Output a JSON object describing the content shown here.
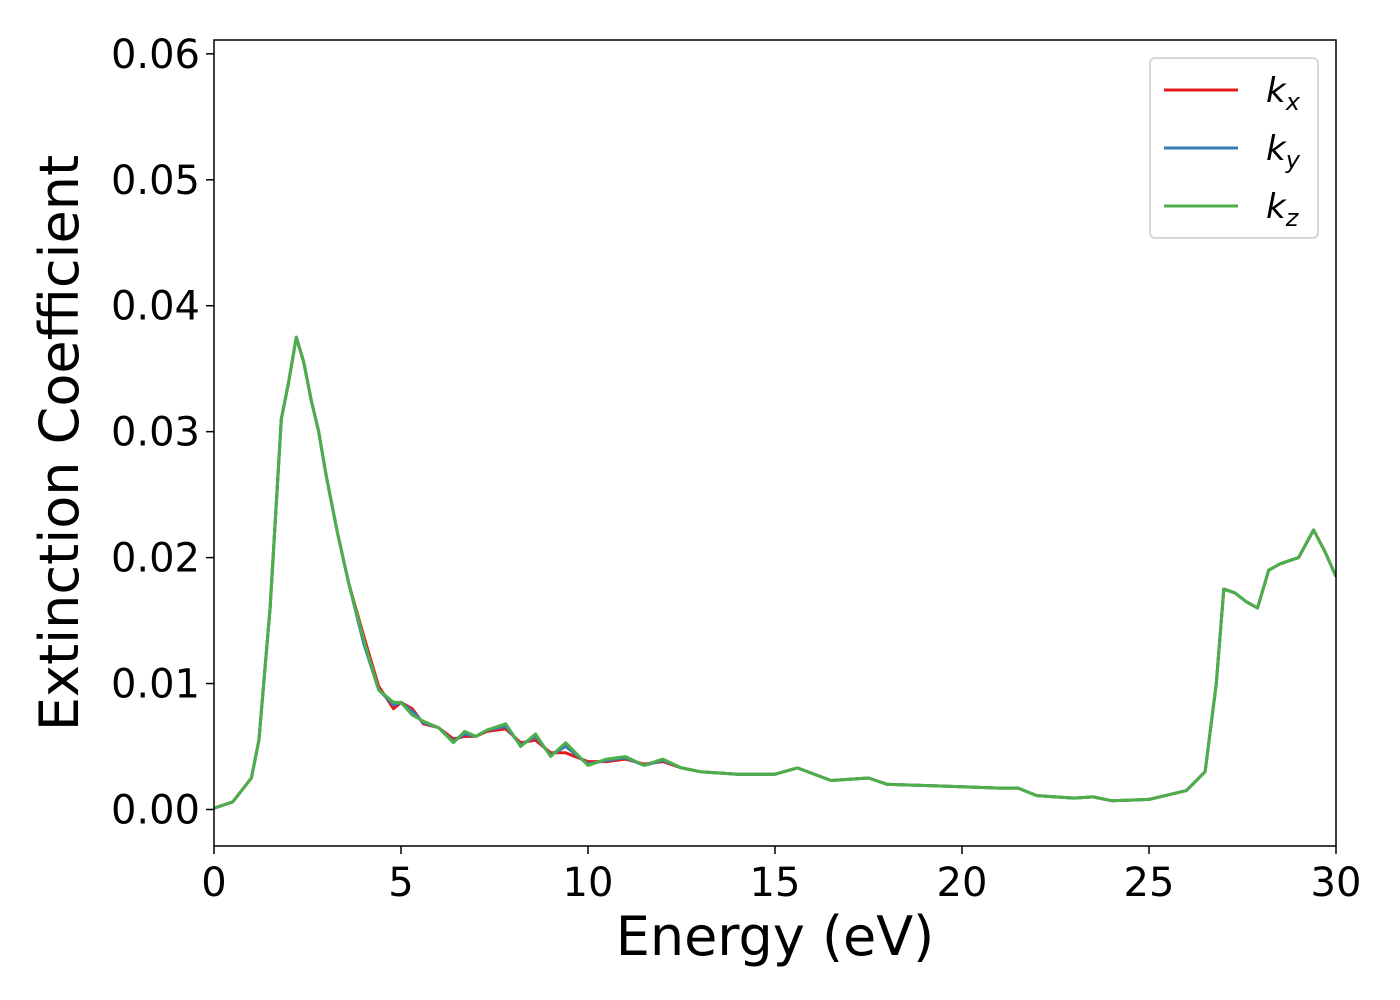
{
  "chart_data": {
    "type": "line",
    "xlabel": "Energy (eV)",
    "ylabel": "Extinction Coefficient",
    "x": [
      0,
      0.5,
      1,
      1.2,
      1.5,
      1.8,
      2.0,
      2.2,
      2.4,
      2.6,
      2.8,
      3.0,
      3.3,
      3.6,
      4.0,
      4.4,
      4.8,
      5.0,
      5.3,
      5.6,
      6.0,
      6.4,
      6.7,
      7.0,
      7.3,
      7.8,
      8.2,
      8.6,
      9.0,
      9.4,
      10,
      10.5,
      11,
      11.5,
      12,
      12.5,
      13,
      14,
      15,
      15.6,
      16.5,
      17.5,
      18,
      19,
      20,
      21,
      21.5,
      22,
      23,
      23.5,
      24,
      25,
      26,
      26.5,
      26.8,
      27.0,
      27.3,
      27.6,
      27.9,
      28.2,
      28.5,
      28.8,
      29.0,
      29.4,
      29.7,
      30
    ],
    "series": [
      {
        "name": "kx",
        "color": "#e41a1c",
        "values": [
          0.0001,
          0.0006,
          0.0025,
          0.0055,
          0.016,
          0.031,
          0.034,
          0.0375,
          0.0355,
          0.0325,
          0.03,
          0.0265,
          0.022,
          0.018,
          0.0138,
          0.0098,
          0.008,
          0.0085,
          0.008,
          0.0068,
          0.0065,
          0.0056,
          0.0058,
          0.0058,
          0.0062,
          0.0064,
          0.0053,
          0.0055,
          0.0045,
          0.0045,
          0.0038,
          0.0038,
          0.004,
          0.0036,
          0.0038,
          0.0033,
          0.003,
          0.0028,
          0.0028,
          0.0033,
          0.0023,
          0.0025,
          0.002,
          0.0019,
          0.0018,
          0.0017,
          0.0017,
          0.0011,
          0.0009,
          0.001,
          0.0007,
          0.0008,
          0.0015,
          0.003,
          0.01,
          0.0175,
          0.0172,
          0.0165,
          0.016,
          0.019,
          0.0195,
          0.0198,
          0.02,
          0.0222,
          0.0205,
          0.0185
        ]
      },
      {
        "name": "ky",
        "color": "#377eb8",
        "values": [
          0.0001,
          0.0006,
          0.0025,
          0.0055,
          0.016,
          0.031,
          0.034,
          0.0375,
          0.0355,
          0.0325,
          0.03,
          0.0265,
          0.022,
          0.018,
          0.0132,
          0.0095,
          0.0083,
          0.0085,
          0.0078,
          0.0069,
          0.0065,
          0.0054,
          0.006,
          0.0058,
          0.0063,
          0.0066,
          0.0051,
          0.0058,
          0.0043,
          0.005,
          0.0036,
          0.0039,
          0.0041,
          0.0035,
          0.0039,
          0.0033,
          0.003,
          0.0028,
          0.0028,
          0.0033,
          0.0023,
          0.0025,
          0.002,
          0.0019,
          0.0018,
          0.0017,
          0.0017,
          0.0011,
          0.0009,
          0.001,
          0.0007,
          0.0008,
          0.0015,
          0.003,
          0.01,
          0.0175,
          0.0172,
          0.0165,
          0.016,
          0.019,
          0.0195,
          0.0198,
          0.02,
          0.0222,
          0.0205,
          0.0185
        ]
      },
      {
        "name": "kz",
        "color": "#4daf4a",
        "values": [
          0.0001,
          0.0006,
          0.0025,
          0.0055,
          0.016,
          0.031,
          0.034,
          0.0375,
          0.0355,
          0.0325,
          0.03,
          0.0265,
          0.022,
          0.018,
          0.0135,
          0.0095,
          0.0085,
          0.0085,
          0.0075,
          0.007,
          0.0065,
          0.0053,
          0.0062,
          0.0058,
          0.0063,
          0.0068,
          0.005,
          0.006,
          0.0042,
          0.0053,
          0.0035,
          0.004,
          0.0042,
          0.0035,
          0.004,
          0.0033,
          0.003,
          0.0028,
          0.0028,
          0.0033,
          0.0023,
          0.0025,
          0.002,
          0.0019,
          0.0018,
          0.0017,
          0.0017,
          0.0011,
          0.0009,
          0.001,
          0.0007,
          0.0008,
          0.0015,
          0.003,
          0.01,
          0.0175,
          0.0172,
          0.0165,
          0.016,
          0.019,
          0.0195,
          0.0198,
          0.02,
          0.0222,
          0.0205,
          0.0185
        ]
      }
    ],
    "xlim": [
      0,
      30
    ],
    "xticks": [
      0,
      5,
      10,
      15,
      20,
      25,
      30
    ],
    "ylim": [
      -0.0029,
      0.0611
    ],
    "yticks": [
      {
        "value": 0,
        "label": "0.00"
      },
      {
        "value": 0.01,
        "label": "0.01"
      },
      {
        "value": 0.02,
        "label": "0.02"
      },
      {
        "value": 0.03,
        "label": "0.03"
      },
      {
        "value": 0.04,
        "label": "0.04"
      },
      {
        "value": 0.05,
        "label": "0.05"
      },
      {
        "value": 0.06,
        "label": "0.06"
      }
    ],
    "grid": false,
    "legend": "upper right"
  }
}
